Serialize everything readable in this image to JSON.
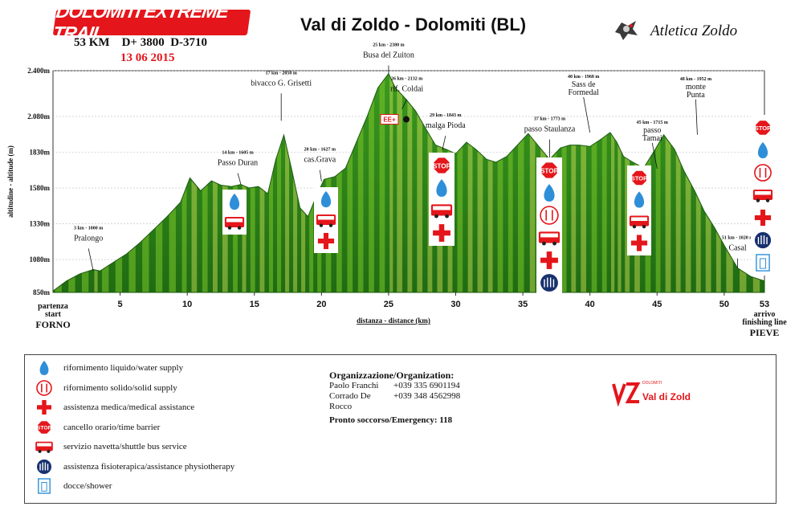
{
  "header": {
    "race_logo_text": "DOLOMITI EXTREME TRAIL",
    "race_info": "53 KM    D+ 3800  D-3710",
    "race_date": "13 06 2015",
    "main_title": "Val di Zoldo - Dolomiti (BL)",
    "club_name": "Atletica Zoldo"
  },
  "colors": {
    "accent_red": "#e4161b",
    "profile_green_dark": "#2e7d1a",
    "profile_green_light": "#7cc62a",
    "profile_yellow": "#d6e65a",
    "water_blue": "#2e8fd8",
    "physio_navy": "#17306e"
  },
  "chart_data": {
    "type": "area",
    "xlabel": "distanza - distance (km)",
    "ylabel": "altitudine - altitude (m)",
    "xlim": [
      0,
      53
    ],
    "ylim": [
      850,
      2400
    ],
    "x_ticks": [
      "5",
      "10",
      "15",
      "20",
      "25",
      "30",
      "35",
      "40",
      "45",
      "50"
    ],
    "y_ticks": [
      "850m",
      "1080m",
      "1330m",
      "1580m",
      "1830m",
      "2.080m",
      "2.400m"
    ],
    "start_label": [
      "partenza",
      "start",
      "FORNO"
    ],
    "end_label_km": "53",
    "end_label": [
      "arrivo",
      "finishing line",
      "PIEVE"
    ],
    "profile": {
      "x": [
        0,
        1,
        2,
        3,
        3.5,
        4.5,
        5.5,
        6.5,
        7.5,
        8.5,
        9.5,
        10.2,
        11,
        11.8,
        12.5,
        13.3,
        14,
        14.6,
        15.3,
        16,
        16.6,
        17.2,
        17.8,
        18.4,
        19,
        19.6,
        20.2,
        21,
        21.8,
        22.6,
        23.4,
        24.2,
        25,
        25.5,
        26.3,
        27,
        27.8,
        28.5,
        29.3,
        30,
        30.8,
        31.5,
        32.3,
        33,
        33.8,
        34.5,
        35.4,
        36.2,
        37,
        37.8,
        38.5,
        39.2,
        40,
        40.8,
        41.5,
        42,
        42.5,
        43.2,
        44,
        44.8,
        45.5,
        46.3,
        47,
        47.8,
        48.5,
        49.3,
        50,
        51,
        52,
        53
      ],
      "y": [
        860,
        930,
        980,
        1010,
        1000,
        1060,
        1120,
        1200,
        1290,
        1380,
        1480,
        1650,
        1560,
        1630,
        1600,
        1590,
        1605,
        1580,
        1590,
        1540,
        1780,
        1950,
        1700,
        1440,
        1380,
        1520,
        1640,
        1660,
        1720,
        1900,
        2080,
        2280,
        2380,
        2280,
        2200,
        2120,
        1990,
        1880,
        1850,
        1820,
        1900,
        1850,
        1780,
        1760,
        1800,
        1870,
        1960,
        1870,
        1780,
        1860,
        1880,
        1880,
        1870,
        1920,
        1968,
        1900,
        1800,
        1760,
        1720,
        1840,
        1952,
        1850,
        1700,
        1560,
        1420,
        1300,
        1180,
        1020,
        960,
        930
      ]
    },
    "checkpoints": [
      {
        "km": 3,
        "alt": 1000,
        "label_small": "3 km - 1000 m",
        "name": "Pralongo"
      },
      {
        "km": 14,
        "alt": 1605,
        "label_small": "14 km - 1605 m",
        "name": "Passo Duran"
      },
      {
        "km": 17,
        "alt": 2050,
        "label_small": "17 km - 2050 m",
        "name": "bivacco G. Grisetti"
      },
      {
        "km": 20,
        "alt": 1627,
        "label_small": "20 km - 1627 m",
        "name": "cas.Grava"
      },
      {
        "km": 25,
        "alt": 2380,
        "label_small": "25 km - 2380 m",
        "name": "Busa del Zuiton"
      },
      {
        "km": 26,
        "alt": 2132,
        "label_small": "26 km - 2132 m",
        "name": "rif. Coldai"
      },
      {
        "km": 29,
        "alt": 1843,
        "label_small": "29 km - 1843 m",
        "name": "malga Pioda"
      },
      {
        "km": 37,
        "alt": 1773,
        "label_small": "37 km - 1773 m",
        "name": "passo Staulanza"
      },
      {
        "km": 40,
        "alt": 1968,
        "label_small": "40 km - 1968 m",
        "name": "Sass de Formedal"
      },
      {
        "km": 45,
        "alt": 1715,
        "label_small": "45 km - 1715 m",
        "name": "passo Tamai"
      },
      {
        "km": 48,
        "alt": 1952,
        "label_small": "48 km - 1952 m",
        "name": "monte Punta"
      },
      {
        "km": 51,
        "alt": 1020,
        "label_small": "51 km - 1020 m",
        "name": "Casal"
      }
    ],
    "ee_label": "EE+"
  },
  "stations": [
    {
      "id": "duran",
      "icons": [
        "water",
        "bus"
      ]
    },
    {
      "id": "grava",
      "icons": [
        "water",
        "bus",
        "medical"
      ]
    },
    {
      "id": "pioda",
      "icons": [
        "stop",
        "water",
        "bus",
        "medical"
      ]
    },
    {
      "id": "staulanza",
      "icons": [
        "stop",
        "water",
        "food",
        "bus",
        "medical",
        "physio"
      ]
    },
    {
      "id": "tamai",
      "icons": [
        "stop",
        "water",
        "bus",
        "medical"
      ]
    },
    {
      "id": "arrivo",
      "icons": [
        "stop",
        "water",
        "food",
        "bus",
        "medical",
        "physio",
        "shower"
      ]
    }
  ],
  "legend": {
    "items": [
      {
        "icon": "water",
        "label": "rifornimento liquido/water supply"
      },
      {
        "icon": "food",
        "label": "rifornimento solido/solid supply"
      },
      {
        "icon": "medical",
        "label": "assistenza medica/medical assistance"
      },
      {
        "icon": "stop",
        "label": "cancello orario/time barrier"
      },
      {
        "icon": "bus",
        "label": "servizio navetta/shuttle bus service"
      },
      {
        "icon": "physio",
        "label": "assistenza fisioterapica/assistance physiotherapy"
      },
      {
        "icon": "shower",
        "label": "docce/shower"
      }
    ],
    "stop_text": "STOP"
  },
  "organization": {
    "heading": "Organizzazione/Organization:",
    "contacts": [
      {
        "name": "Paolo Franchi",
        "phone": "+039 335 6901194"
      },
      {
        "name": "Corrado De Rocco",
        "phone": "+039 348 4562998"
      }
    ],
    "emergency": "Pronto soccorso/Emergency: 118",
    "sponsor_logo_text": "Val di Zoldo",
    "sponsor_logo_small": "DOLOMITI"
  }
}
